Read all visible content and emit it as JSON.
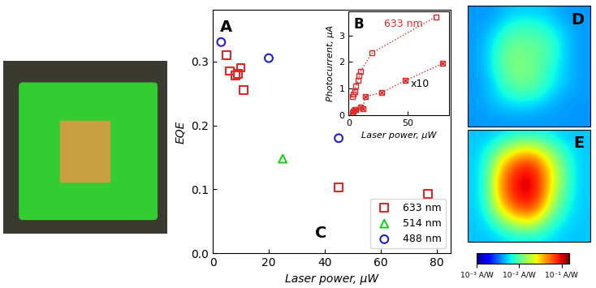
{
  "chart_data": [
    {
      "type": "scatter",
      "panel": "A",
      "x_label": "Laser power, μW",
      "y_label": "EQE",
      "xlim": [
        0,
        85
      ],
      "xticks": [
        0,
        20,
        40,
        60,
        80
      ],
      "ylim": [
        0,
        0.38
      ],
      "yticks": [
        {
          "value": 0,
          "label": "0.0"
        },
        0.1,
        0.2,
        0.3
      ],
      "legend": "lower right",
      "annotations": [
        "C"
      ],
      "series": [
        {
          "name": "633 nm",
          "color": "#e02828",
          "marker": "square",
          "x": [
            5,
            6,
            8,
            9,
            10,
            11,
            45,
            77
          ],
          "values": [
            0.31,
            0.285,
            0.278,
            0.28,
            0.29,
            0.255,
            0.103,
            0.093
          ]
        },
        {
          "name": "514 nm",
          "color": "#22cc22",
          "marker": "triangle",
          "x": [
            25
          ],
          "values": [
            0.148
          ]
        },
        {
          "name": "488 nm",
          "color": "#1f1fd0",
          "marker": "circle",
          "x": [
            3,
            20,
            45
          ],
          "values": [
            0.33,
            0.305,
            0.18
          ]
        }
      ]
    },
    {
      "type": "scatter",
      "panel": "B",
      "x_label": "Laser power, μW",
      "y_label": "Photocurrent, μA",
      "xlim": [
        0,
        85
      ],
      "xticks": [
        0,
        50
      ],
      "ylim": [
        0,
        3.9
      ],
      "yticks": [
        0,
        1,
        2,
        3
      ],
      "series": [
        {
          "name": "633 nm",
          "color": "#e02828",
          "marker": "square",
          "line_style": "dotted",
          "x": [
            3,
            4,
            5,
            6,
            8,
            9,
            10,
            20,
            74
          ],
          "values": [
            0.7,
            0.8,
            0.9,
            1.1,
            1.3,
            1.5,
            1.65,
            2.35,
            3.7
          ]
        },
        {
          "name": "x10",
          "color": "#e02828",
          "marker": "square_x",
          "line_style": "dotted",
          "x": [
            3,
            4,
            5,
            6,
            10,
            12,
            14,
            28,
            48,
            80
          ],
          "values": [
            0.1,
            0.15,
            0.2,
            0.2,
            0.3,
            0.25,
            0.7,
            0.85,
            1.3,
            1.95
          ]
        }
      ]
    },
    {
      "type": "heatmap",
      "panel": "D",
      "tick_labels": false,
      "color_range": [
        0.001,
        0.15
      ],
      "cells": [
        [
          0.004,
          0.004,
          0.005,
          0.005,
          0.005,
          0.004,
          0.004
        ],
        [
          0.004,
          0.005,
          0.008,
          0.009,
          0.007,
          0.005,
          0.004
        ],
        [
          0.004,
          0.006,
          0.012,
          0.011,
          0.01,
          0.005,
          0.004
        ],
        [
          0.004,
          0.006,
          0.013,
          0.012,
          0.008,
          0.005,
          0.004
        ],
        [
          0.004,
          0.005,
          0.01,
          0.012,
          0.007,
          0.005,
          0.004
        ],
        [
          0.004,
          0.005,
          0.006,
          0.006,
          0.005,
          0.004,
          0.004
        ],
        [
          0.004,
          0.004,
          0.004,
          0.004,
          0.004,
          0.004,
          0.004
        ]
      ]
    },
    {
      "type": "heatmap",
      "panel": "E",
      "tick_labels": false,
      "color_range": [
        0.001,
        0.15
      ],
      "color_ticks": [
        {
          "value": 0.001,
          "label": "10⁻³ A/W"
        },
        {
          "value": 0.01,
          "label": "10⁻² A/W"
        },
        {
          "value": 0.1,
          "label": "10⁻¹ A/W"
        }
      ],
      "cells": [
        [
          0.005,
          0.005,
          0.006,
          0.006,
          0.006,
          0.005,
          0.005
        ],
        [
          0.005,
          0.008,
          0.02,
          0.03,
          0.015,
          0.007,
          0.005
        ],
        [
          0.005,
          0.01,
          0.06,
          0.1,
          0.03,
          0.008,
          0.005
        ],
        [
          0.005,
          0.01,
          0.08,
          0.12,
          0.03,
          0.008,
          0.005
        ],
        [
          0.005,
          0.01,
          0.06,
          0.1,
          0.02,
          0.007,
          0.005
        ],
        [
          0.005,
          0.007,
          0.02,
          0.03,
          0.01,
          0.006,
          0.005
        ],
        [
          0.005,
          0.005,
          0.006,
          0.006,
          0.006,
          0.005,
          0.005
        ]
      ]
    }
  ]
}
